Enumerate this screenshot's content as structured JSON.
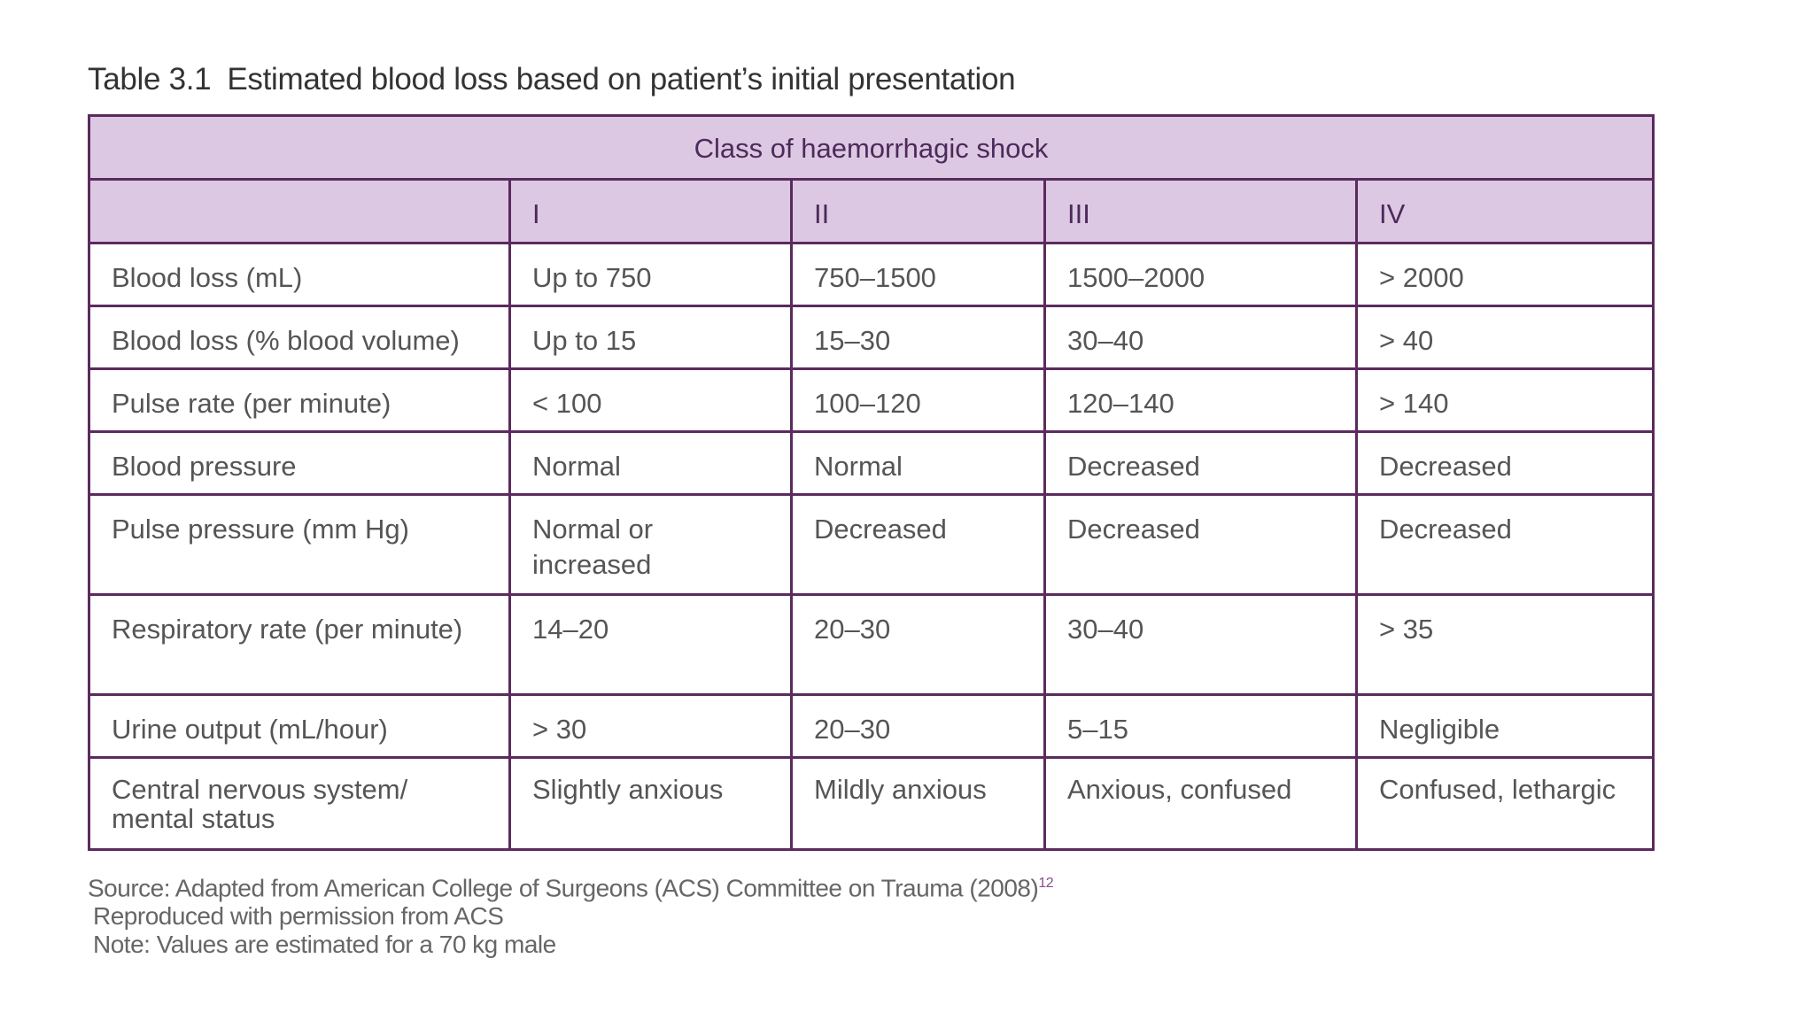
{
  "caption": {
    "number": "Table 3.1",
    "title": "Estimated blood loss based on patient’s initial presentation"
  },
  "table": {
    "super_header": "Class of haemorrhagic shock",
    "classes": [
      "I",
      "II",
      "III",
      "IV"
    ],
    "rows": [
      {
        "label": "Blood loss (mL)",
        "values": [
          "Up to 750",
          "750–1500",
          "1500–2000",
          "> 2000"
        ]
      },
      {
        "label": "Blood loss (% blood volume)",
        "values": [
          "Up to 15",
          "15–30",
          "30–40",
          "> 40"
        ]
      },
      {
        "label": "Pulse rate (per minute)",
        "values": [
          "< 100",
          "100–120",
          "120–140",
          "> 140"
        ]
      },
      {
        "label": "Blood pressure",
        "values": [
          "Normal",
          "Normal",
          "Decreased",
          "Decreased"
        ]
      },
      {
        "label": "Pulse pressure (mm Hg)",
        "values": [
          "Normal or increased",
          "Decreased",
          "Decreased",
          "Decreased"
        ]
      },
      {
        "label": "Respiratory rate (per minute)",
        "values": [
          "14–20",
          "20–30",
          "30–40",
          "> 35"
        ]
      },
      {
        "label": "Urine output (mL/hour)",
        "values": [
          "> 30",
          "20–30",
          "5–15",
          "Negligible"
        ]
      },
      {
        "label": "Central nervous system/ mental status",
        "values": [
          "Slightly anxious",
          "Mildly anxious",
          "Anxious, confused",
          "Confused, lethargic"
        ]
      }
    ]
  },
  "notes": {
    "source": "Source: Adapted from American College of Surgeons (ACS) Committee on Trauma (2008)",
    "source_ref": "12",
    "permission": "Reproduced with permission from ACS",
    "note": "Note: Values are estimated for a 70 kg male"
  },
  "colors": {
    "header_fill": "#dcc8e3",
    "border": "#5b2a5e",
    "header_text": "#4d2a5a"
  }
}
